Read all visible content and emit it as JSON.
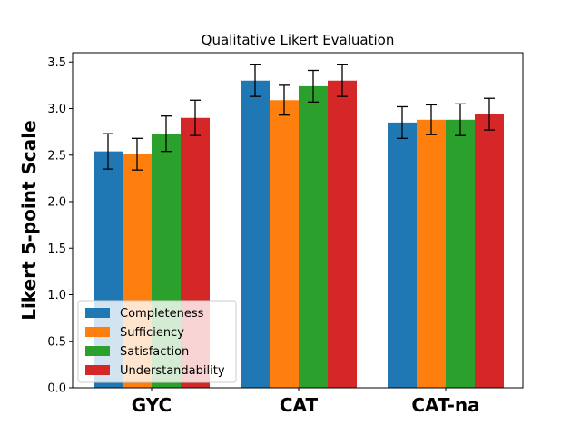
{
  "chart_data": {
    "type": "bar",
    "title": "Qualitative Likert Evaluation",
    "xlabel": "",
    "ylabel": "Likert 5-point Scale",
    "ylim": [
      0,
      3.6
    ],
    "yticks": [
      "0.0",
      "0.5",
      "1.0",
      "1.5",
      "2.0",
      "2.5",
      "3.0",
      "3.5"
    ],
    "categories": [
      "GYC",
      "CAT",
      "CAT-na"
    ],
    "series": [
      {
        "name": "Completeness",
        "color": "#1f77b4",
        "values": [
          2.54,
          3.3,
          2.85
        ],
        "errors": [
          0.19,
          0.17,
          0.17
        ]
      },
      {
        "name": "Sufficiency",
        "color": "#ff7f0e",
        "values": [
          2.51,
          3.09,
          2.88
        ],
        "errors": [
          0.17,
          0.16,
          0.16
        ]
      },
      {
        "name": "Satisfaction",
        "color": "#2ca02c",
        "values": [
          2.73,
          3.24,
          2.88
        ],
        "errors": [
          0.19,
          0.17,
          0.17
        ]
      },
      {
        "name": "Understandability",
        "color": "#d62728",
        "values": [
          2.9,
          3.3,
          2.94
        ],
        "errors": [
          0.19,
          0.17,
          0.17
        ]
      }
    ],
    "legend_position": "lower-left",
    "grid": false
  }
}
